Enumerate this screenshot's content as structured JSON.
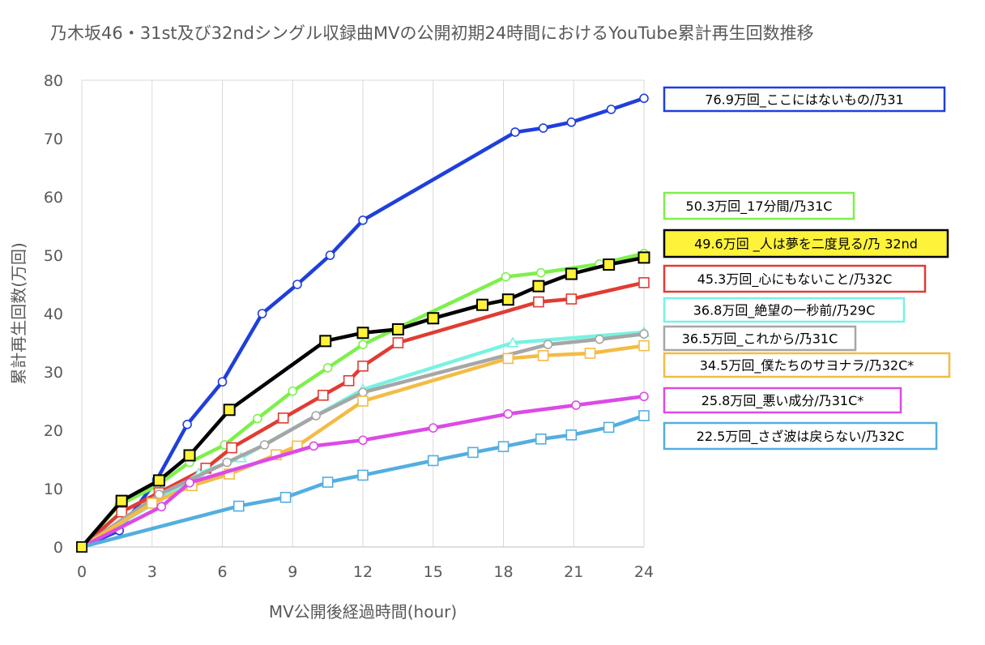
{
  "chart_data": {
    "type": "line",
    "title": "乃木坂46・31st及び32ndシングル収録曲MVの公開初期24時間におけるYouTube累計再生回数推移",
    "xlabel": "MV公開後経過時間(hour)",
    "ylabel": "累計再生回数(万回)",
    "xlim": [
      0,
      24
    ],
    "ylim": [
      0,
      80
    ],
    "xticks": [
      "0",
      "3",
      "6",
      "9",
      "12",
      "15",
      "18",
      "21",
      "24"
    ],
    "yticks": [
      "0",
      "10",
      "20",
      "30",
      "40",
      "50",
      "60",
      "70",
      "80"
    ],
    "grid": "vertical",
    "legend": "right",
    "series": [
      {
        "name": "76.9万回_ここにはないもの/乃31",
        "color": "#1f3fdc",
        "marker": "circle-open",
        "fill": "#ffffff",
        "width": 4.5,
        "markerSize": 5,
        "x": [
          0,
          1.6,
          3.2,
          4.5,
          6.0,
          7.7,
          9.2,
          10.6,
          12.0,
          18.5,
          19.7,
          20.9,
          22.6,
          24.0
        ],
        "y": [
          0,
          2.8,
          11.5,
          21.0,
          28.3,
          40.0,
          45.0,
          50.0,
          56.0,
          71.1,
          71.8,
          72.8,
          75.0,
          76.9
        ]
      },
      {
        "name": "50.3万回_17分間/乃31C",
        "color": "#7ef04c",
        "marker": "circle-open",
        "fill": "#ffffff",
        "width": 4.5,
        "markerSize": 5,
        "x": [
          0,
          1.6,
          3.2,
          4.6,
          6.1,
          7.5,
          9.0,
          10.5,
          12.0,
          18.1,
          19.6,
          22.1,
          24.0
        ],
        "y": [
          0,
          7.2,
          10.5,
          14.5,
          17.5,
          22.0,
          26.7,
          30.7,
          34.7,
          46.3,
          47.0,
          48.5,
          50.3
        ]
      },
      {
        "name": "45.3万回_心にもないこと/乃32C",
        "color": "#e03c33",
        "marker": "square-open",
        "fill": "#ffffff",
        "width": 4.5,
        "markerSize": 6,
        "x": [
          0,
          1.7,
          3.3,
          5.3,
          6.4,
          8.6,
          10.3,
          11.4,
          12.0,
          13.5,
          19.5,
          20.9,
          24.0
        ],
        "y": [
          0,
          6.0,
          9.3,
          13.5,
          17.0,
          22.1,
          26.0,
          28.5,
          31.0,
          35.0,
          42.0,
          42.5,
          45.3
        ]
      },
      {
        "name": "36.8万回_絶望の一秒前/乃29C",
        "color": "#79f2e1",
        "marker": "triangle-open",
        "fill": "#ffffff",
        "width": 4.5,
        "markerSize": 6,
        "x": [
          0,
          3.3,
          5.0,
          6.8,
          12.0,
          18.4,
          24.0
        ],
        "y": [
          0,
          8.0,
          12.6,
          15.3,
          27.0,
          35.0,
          36.8
        ]
      },
      {
        "name": "36.5万回_これから/乃31C",
        "color": "#a6a6a6",
        "marker": "circle-open",
        "fill": "#ffffff",
        "width": 4.5,
        "markerSize": 5,
        "x": [
          0,
          3.3,
          6.2,
          7.8,
          10.0,
          12.0,
          19.9,
          22.1,
          24.0
        ],
        "y": [
          0,
          9.0,
          14.5,
          17.5,
          22.5,
          26.5,
          34.7,
          35.6,
          36.5
        ]
      },
      {
        "name": "34.5万回_僕たちのサヨナラ/乃32C*",
        "color": "#f2bc45",
        "marker": "square-open",
        "fill": "#ffffff",
        "width": 4.5,
        "markerSize": 6,
        "x": [
          0,
          3.0,
          4.7,
          6.3,
          8.3,
          9.2,
          12.0,
          18.2,
          19.7,
          21.7,
          24.0
        ],
        "y": [
          0,
          7.5,
          10.5,
          12.5,
          15.8,
          17.3,
          25.0,
          32.3,
          32.8,
          33.2,
          34.5
        ]
      },
      {
        "name": "25.8万回_悪い成分/乃31C*",
        "color": "#dc4ae7",
        "marker": "circle-open",
        "fill": "#ffffff",
        "width": 4.5,
        "markerSize": 5,
        "x": [
          0,
          3.4,
          4.6,
          9.9,
          12.0,
          15.0,
          18.2,
          21.1,
          24.0
        ],
        "y": [
          0,
          6.9,
          11.0,
          17.3,
          18.3,
          20.4,
          22.8,
          24.3,
          25.8
        ]
      },
      {
        "name": "22.5万回_さざ波は戻らない/乃32C",
        "color": "#53aee0",
        "marker": "square-open",
        "fill": "#ffffff",
        "width": 4.5,
        "markerSize": 6,
        "x": [
          0,
          6.7,
          8.7,
          10.5,
          12.0,
          15.0,
          16.7,
          18.0,
          19.6,
          20.9,
          22.5,
          24.0
        ],
        "y": [
          0,
          7.0,
          8.5,
          11.1,
          12.3,
          14.8,
          16.2,
          17.2,
          18.5,
          19.2,
          20.5,
          22.5
        ]
      },
      {
        "name": "49.6万回 _人は夢を二度見る/乃 32nd",
        "color": "#000000",
        "marker": "square-filled",
        "fill": "#fff33a",
        "width": 4.5,
        "markerSize": 6.5,
        "x": [
          0,
          1.7,
          3.3,
          4.6,
          6.3,
          10.4,
          12.0,
          13.5,
          15.0,
          17.1,
          18.2,
          19.5,
          20.9,
          22.5,
          24.0
        ],
        "y": [
          0,
          7.9,
          11.4,
          15.7,
          23.5,
          35.3,
          36.7,
          37.3,
          39.2,
          41.5,
          42.4,
          44.7,
          46.8,
          48.4,
          49.6
        ]
      }
    ],
    "legend_entries": [
      {
        "text": "76.9万回_ここにはないもの/乃31",
        "border": "#1f3fdc",
        "bg": "#ffffff"
      },
      {
        "text": "50.3万回_17分間/乃31C",
        "border": "#7ef04c",
        "bg": "#ffffff"
      },
      {
        "text": "49.6万回 _人は夢を二度見る/乃 32nd",
        "border": "#000000",
        "bg": "#fff33a"
      },
      {
        "text": "45.3万回_心にもないこと/乃32C",
        "border": "#e03c33",
        "bg": "#ffffff"
      },
      {
        "text": "36.8万回_絶望の一秒前/乃29C",
        "border": "#79f2e1",
        "bg": "#ffffff"
      },
      {
        "text": "36.5万回_これから/乃31C",
        "border": "#a6a6a6",
        "bg": "#ffffff"
      },
      {
        "text": "34.5万回_僕たちのサヨナラ/乃32C*",
        "border": "#f2bc45",
        "bg": "#ffffff"
      },
      {
        "text": "25.8万回_悪い成分/乃31C*",
        "border": "#dc4ae7",
        "bg": "#ffffff"
      },
      {
        "text": "22.5万回_さざ波は戻らない/乃32C",
        "border": "#53aee0",
        "bg": "#ffffff"
      }
    ]
  }
}
